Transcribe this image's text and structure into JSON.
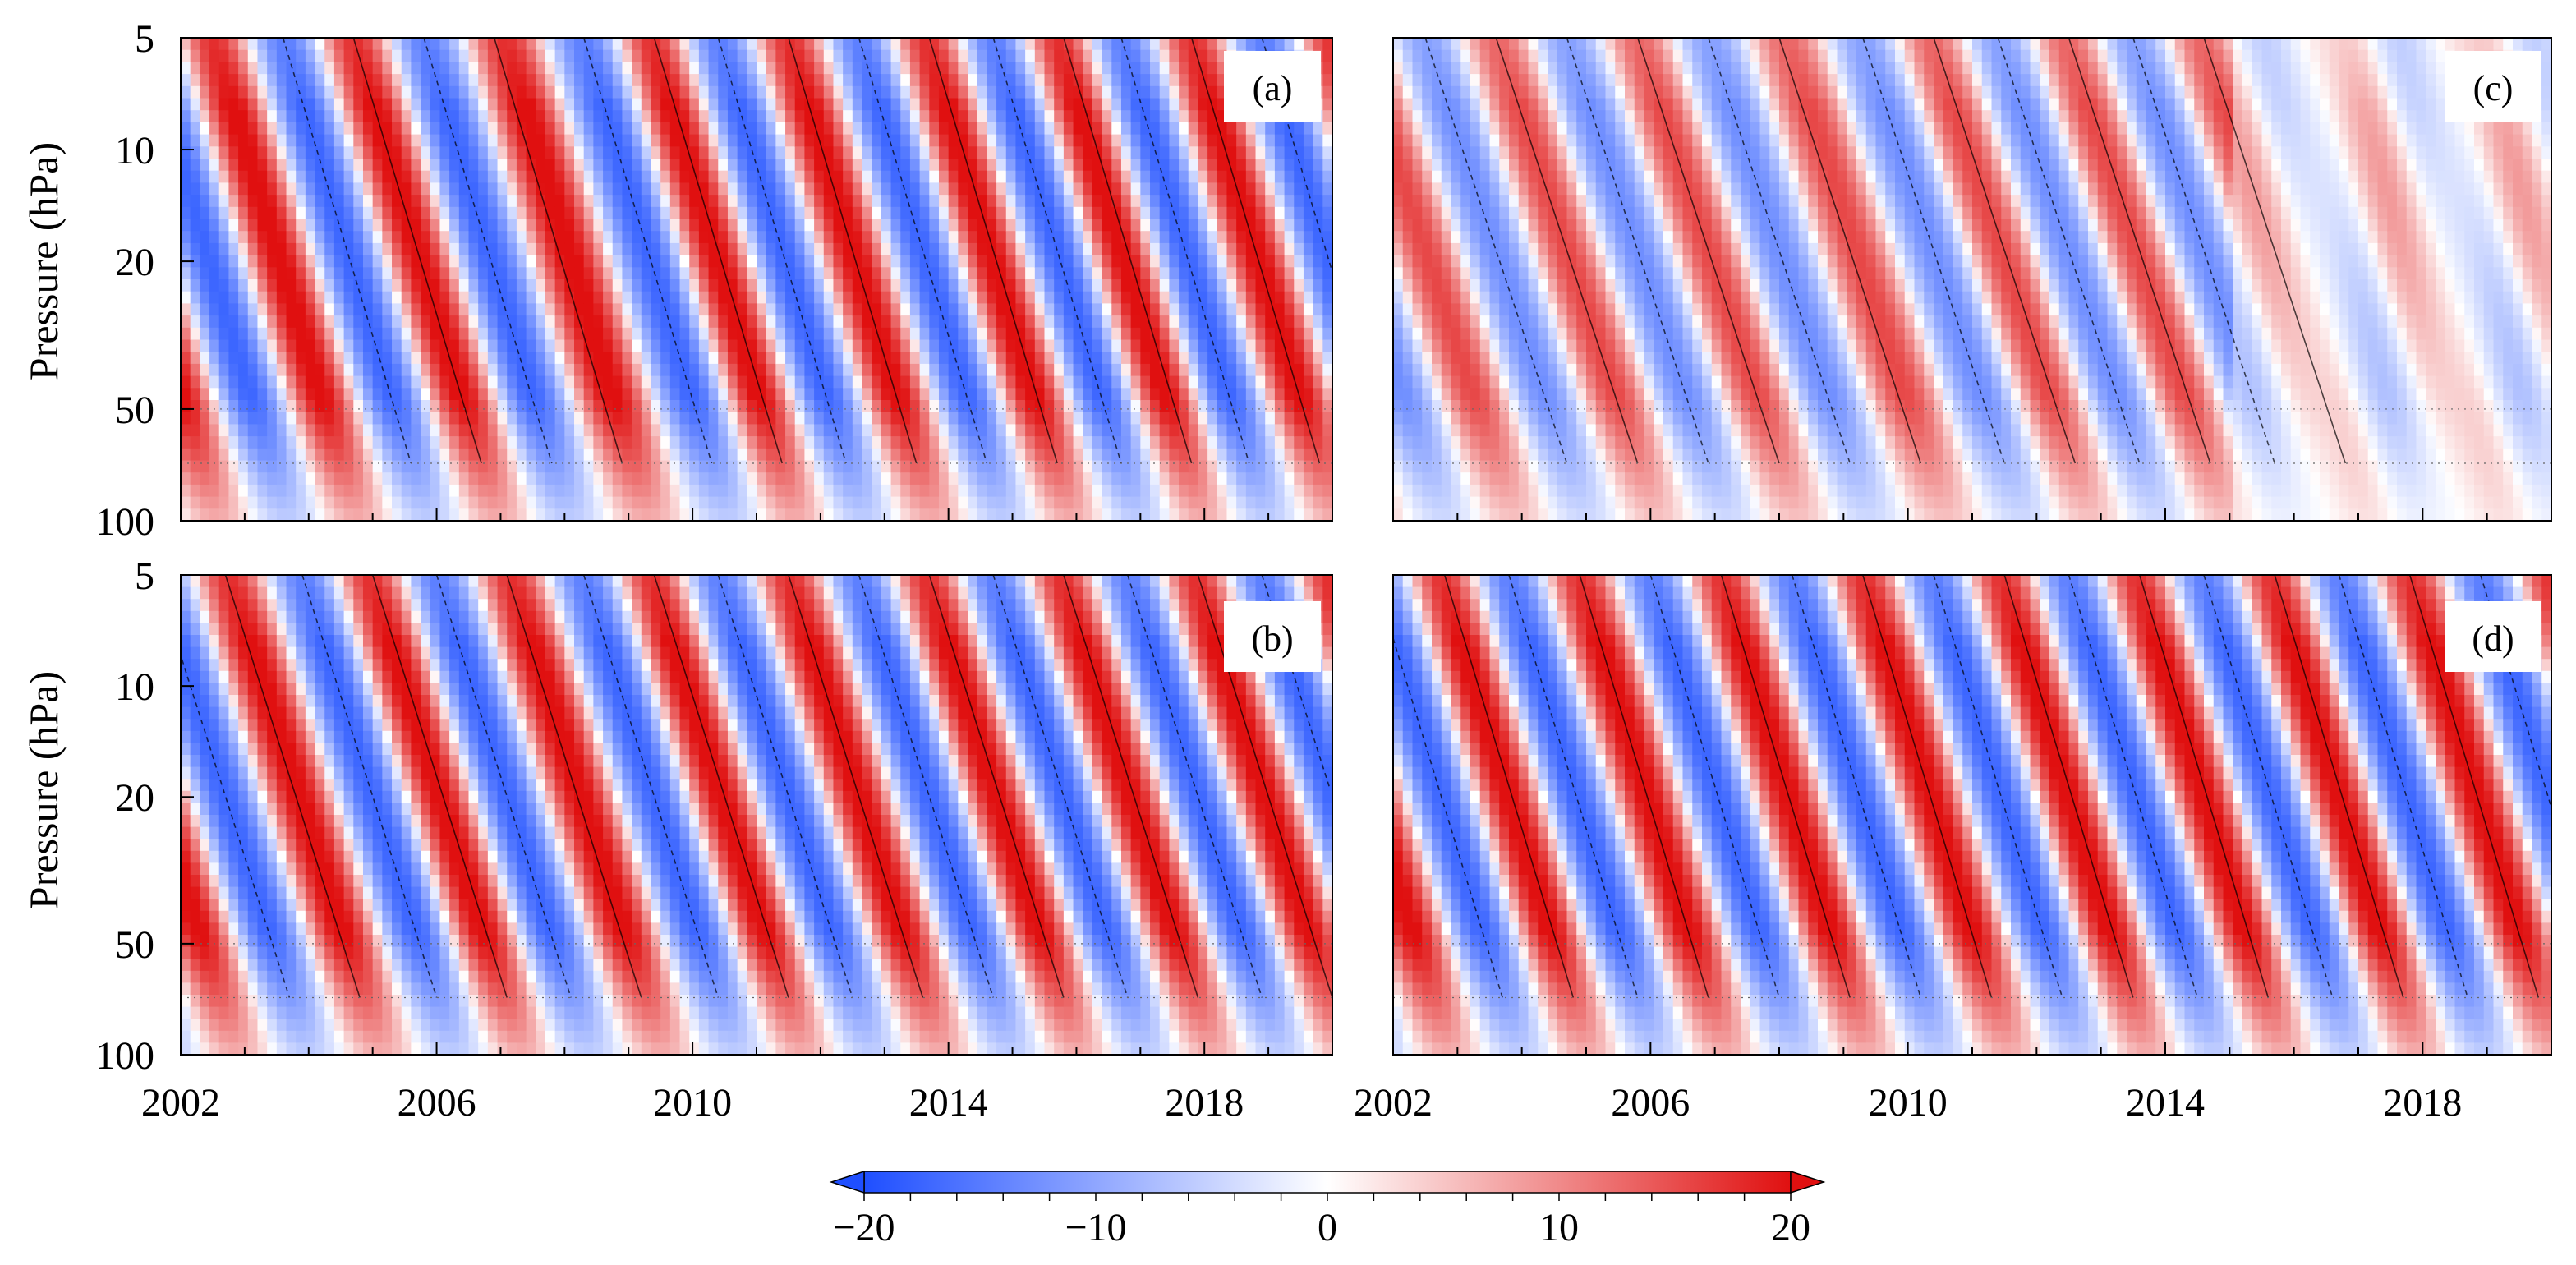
{
  "chart_data": [
    {
      "type": "heatmap",
      "panel_label": "(a)",
      "ylabel": "Pressure (hPa)",
      "xlabel": "",
      "xlim": [
        2002,
        2020
      ],
      "ylim": [
        100,
        5
      ],
      "yscale": "log",
      "xticks": [
        2002,
        2006,
        2010,
        2014,
        2018
      ],
      "yticks": [
        5,
        10,
        20,
        50,
        100
      ],
      "easterly_peak_years_at_5hPa": [
        2003.6,
        2005.8,
        2008.3,
        2010.4,
        2012.6,
        2014.7,
        2016.7,
        2018.9
      ],
      "descent_years_5_to_70hPa": 2.0,
      "amplitude_max": 20
    },
    {
      "type": "heatmap",
      "panel_label": "(b)",
      "ylabel": "Pressure (hPa)",
      "xlabel": "",
      "xlim": [
        2002,
        2020
      ],
      "ylim": [
        100,
        5
      ],
      "yscale": "log",
      "xticks": [
        2002,
        2006,
        2010,
        2014,
        2018
      ],
      "yticks": [
        5,
        10,
        20,
        50,
        100
      ],
      "easterly_peak_years_at_5hPa": [
        2001.6,
        2003.9,
        2006.0,
        2008.3,
        2010.4,
        2012.6,
        2014.7,
        2016.8,
        2018.9
      ],
      "descent_years_5_to_70hPa": 2.1,
      "amplitude_max": 20
    },
    {
      "type": "heatmap",
      "panel_label": "(c)",
      "ylabel": "",
      "xlabel": "",
      "xlim": [
        2002,
        2020
      ],
      "ylim": [
        100,
        5
      ],
      "yscale": "log",
      "xticks": [
        2002,
        2006,
        2010,
        2014,
        2018
      ],
      "yticks": [
        5,
        10,
        20,
        50,
        100
      ],
      "easterly_peak_years_at_5hPa": [
        2002.5,
        2004.7,
        2006.9,
        2009.3,
        2011.4,
        2013.5
      ],
      "descent_years_5_to_70hPa": 2.2,
      "amplitude_max": 14,
      "note": "pattern disrupted after 2015"
    },
    {
      "type": "heatmap",
      "panel_label": "(d)",
      "ylabel": "",
      "xlabel": "",
      "xlim": [
        2002,
        2020
      ],
      "ylim": [
        100,
        5
      ],
      "yscale": "log",
      "xticks": [
        2002,
        2006,
        2010,
        2014,
        2018
      ],
      "yticks": [
        5,
        10,
        20,
        50,
        100
      ],
      "easterly_peak_years_at_5hPa": [
        2001.7,
        2003.8,
        2006.0,
        2008.2,
        2010.4,
        2012.5,
        2014.6,
        2016.7,
        2018.9
      ],
      "descent_years_5_to_70hPa": 2.0,
      "amplitude_max": 20
    }
  ],
  "colorbar": {
    "min": -20,
    "max": 20,
    "tick_values": [
      -20,
      -10,
      0,
      10,
      20
    ],
    "tick_labels": [
      "−20",
      "−10",
      "0",
      "10",
      "20"
    ],
    "negative_color": "#1f4fff",
    "zero_color": "#ffffff",
    "positive_color": "#e01010",
    "extend": "both"
  }
}
